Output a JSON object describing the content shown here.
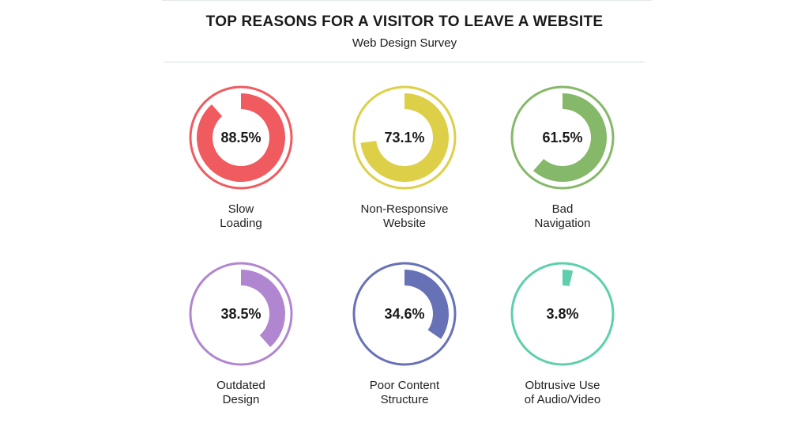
{
  "chart_data": {
    "type": "gauge",
    "title": "TOP REASONS FOR A VISITOR TO LEAVE A WEBSITE",
    "subtitle": "Web Design Survey",
    "categories": [
      [
        "Slow",
        "Loading"
      ],
      [
        "Non-Responsive",
        "Website"
      ],
      [
        "Bad",
        "Navigation"
      ],
      [
        "Outdated",
        "Design"
      ],
      [
        "Poor Content",
        "Structure"
      ],
      [
        "Obtrusive Use",
        "of Audio/Video"
      ]
    ],
    "values": [
      88.5,
      73.1,
      61.5,
      38.5,
      34.6,
      3.8
    ],
    "value_labels": [
      "88.5%",
      "73.1%",
      "61.5%",
      "38.5%",
      "34.6%",
      "3.8%"
    ],
    "ylim": [
      0,
      100
    ],
    "colors": [
      "#ef5b5f",
      "#ddd048",
      "#86b86a",
      "#b186d0",
      "#6772b6",
      "#5ecfad"
    ]
  }
}
